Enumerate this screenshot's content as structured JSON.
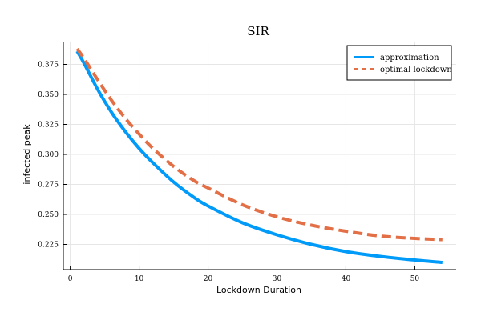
{
  "chart_data": {
    "type": "line",
    "title": "SIR",
    "xlabel": "Lockdown Duration",
    "ylabel": "infected peak",
    "xlim": [
      -1,
      56
    ],
    "ylim": [
      0.204,
      0.394
    ],
    "xticks": [
      0,
      10,
      20,
      30,
      40,
      50
    ],
    "yticks": [
      0.225,
      0.25,
      0.275,
      0.3,
      0.325,
      0.35,
      0.375
    ],
    "ytick_labels": [
      "0.225",
      "0.250",
      "0.275",
      "0.300",
      "0.325",
      "0.350",
      "0.375"
    ],
    "grid": true,
    "legend_position": "top-right",
    "series": [
      {
        "name": "approximation",
        "color": "#009AF9",
        "style": "solid",
        "x": [
          1,
          2,
          4,
          6,
          8,
          10,
          12,
          15,
          18,
          20,
          25,
          30,
          35,
          40,
          45,
          50,
          54
        ],
        "y": [
          0.386,
          0.376,
          0.354,
          0.335,
          0.319,
          0.305,
          0.293,
          0.277,
          0.264,
          0.257,
          0.243,
          0.233,
          0.225,
          0.219,
          0.215,
          0.212,
          0.21
        ]
      },
      {
        "name": "optimal lockdown",
        "color": "#E26F46",
        "style": "dashed",
        "x": [
          1,
          2,
          4,
          6,
          8,
          10,
          12,
          15,
          18,
          20,
          25,
          30,
          35,
          40,
          45,
          50,
          54
        ],
        "y": [
          0.388,
          0.38,
          0.362,
          0.345,
          0.33,
          0.317,
          0.305,
          0.29,
          0.278,
          0.272,
          0.258,
          0.248,
          0.241,
          0.236,
          0.232,
          0.23,
          0.229
        ]
      }
    ]
  }
}
